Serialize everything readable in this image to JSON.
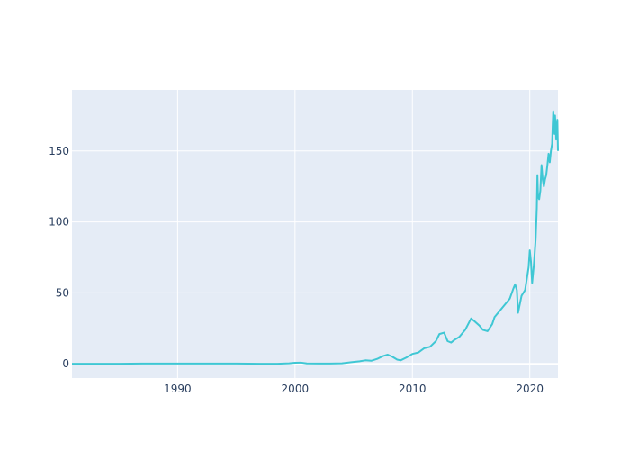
{
  "colors": {
    "plot_background": "#E5ECF6",
    "grid": "#ffffff",
    "line": "#3FC7D4",
    "tick_text": "#2a3f5f"
  },
  "chart_data": {
    "type": "line",
    "title": "",
    "xlabel": "",
    "ylabel": "",
    "xlim": [
      1981.0,
      2022.4
    ],
    "ylim": [
      -10,
      193
    ],
    "grid": true,
    "legend": "none",
    "x_ticks": [
      1990,
      2000,
      2010,
      2020
    ],
    "x_tick_labels": [
      "1990",
      "2000",
      "2010",
      "2020"
    ],
    "y_ticks": [
      0,
      50,
      100,
      150
    ],
    "y_tick_labels": [
      "0",
      "50",
      "100",
      "150"
    ],
    "series": [
      {
        "x": [
          1981.0,
          1983.0,
          1985.0,
          1987.0,
          1989.0,
          1991.0,
          1993.0,
          1995.0,
          1997.0,
          1998.5,
          1999.5,
          2000.0,
          2000.5,
          2001.0,
          2002.0,
          2003.0,
          2004.0,
          2004.8,
          2005.5,
          2006.0,
          2006.5,
          2007.0,
          2007.5,
          2007.9,
          2008.3,
          2008.7,
          2009.0,
          2009.5,
          2010.0,
          2010.5,
          2011.0,
          2011.5,
          2012.0,
          2012.3,
          2012.7,
          2013.0,
          2013.3,
          2013.6,
          2014.0,
          2014.5,
          2015.0,
          2015.3,
          2015.7,
          2016.0,
          2016.4,
          2016.8,
          2017.0,
          2017.5,
          2018.0,
          2018.3,
          2018.6,
          2018.75,
          2018.9,
          2019.0,
          2019.3,
          2019.6,
          2019.9,
          2020.0,
          2020.1,
          2020.2,
          2020.35,
          2020.5,
          2020.6,
          2020.65,
          2020.7,
          2020.8,
          2020.9,
          2021.0,
          2021.1,
          2021.2,
          2021.3,
          2021.4,
          2021.5,
          2021.6,
          2021.7,
          2021.8,
          2021.9,
          2021.95,
          2022.0,
          2022.05,
          2022.1,
          2022.15,
          2022.2,
          2022.25,
          2022.3,
          2022.35,
          2022.4
        ],
        "values": [
          0.1,
          0.1,
          0.1,
          0.2,
          0.2,
          0.2,
          0.2,
          0.2,
          0.1,
          0.1,
          0.4,
          0.8,
          0.9,
          0.3,
          0.2,
          0.2,
          0.4,
          1.2,
          1.8,
          2.5,
          2.2,
          3.5,
          5.5,
          6.5,
          5.0,
          3.0,
          2.5,
          4.5,
          7.0,
          8.0,
          11.0,
          12.0,
          16.0,
          21.0,
          22.0,
          16.0,
          15.0,
          17.0,
          19.0,
          24.0,
          32.0,
          30.0,
          27.0,
          24.0,
          23.0,
          28.0,
          33.0,
          38.0,
          43.0,
          46.0,
          53.0,
          56.0,
          52.0,
          36.0,
          48.0,
          52.0,
          68.0,
          80.0,
          72.0,
          57.0,
          70.0,
          88.0,
          110.0,
          133.0,
          118.0,
          116.0,
          122.0,
          140.0,
          130.0,
          125.0,
          130.0,
          133.0,
          140.0,
          148.0,
          142.0,
          150.0,
          155.0,
          168.0,
          178.0,
          172.0,
          162.0,
          175.0,
          168.0,
          158.0,
          165.0,
          172.0,
          150.0
        ]
      }
    ]
  }
}
